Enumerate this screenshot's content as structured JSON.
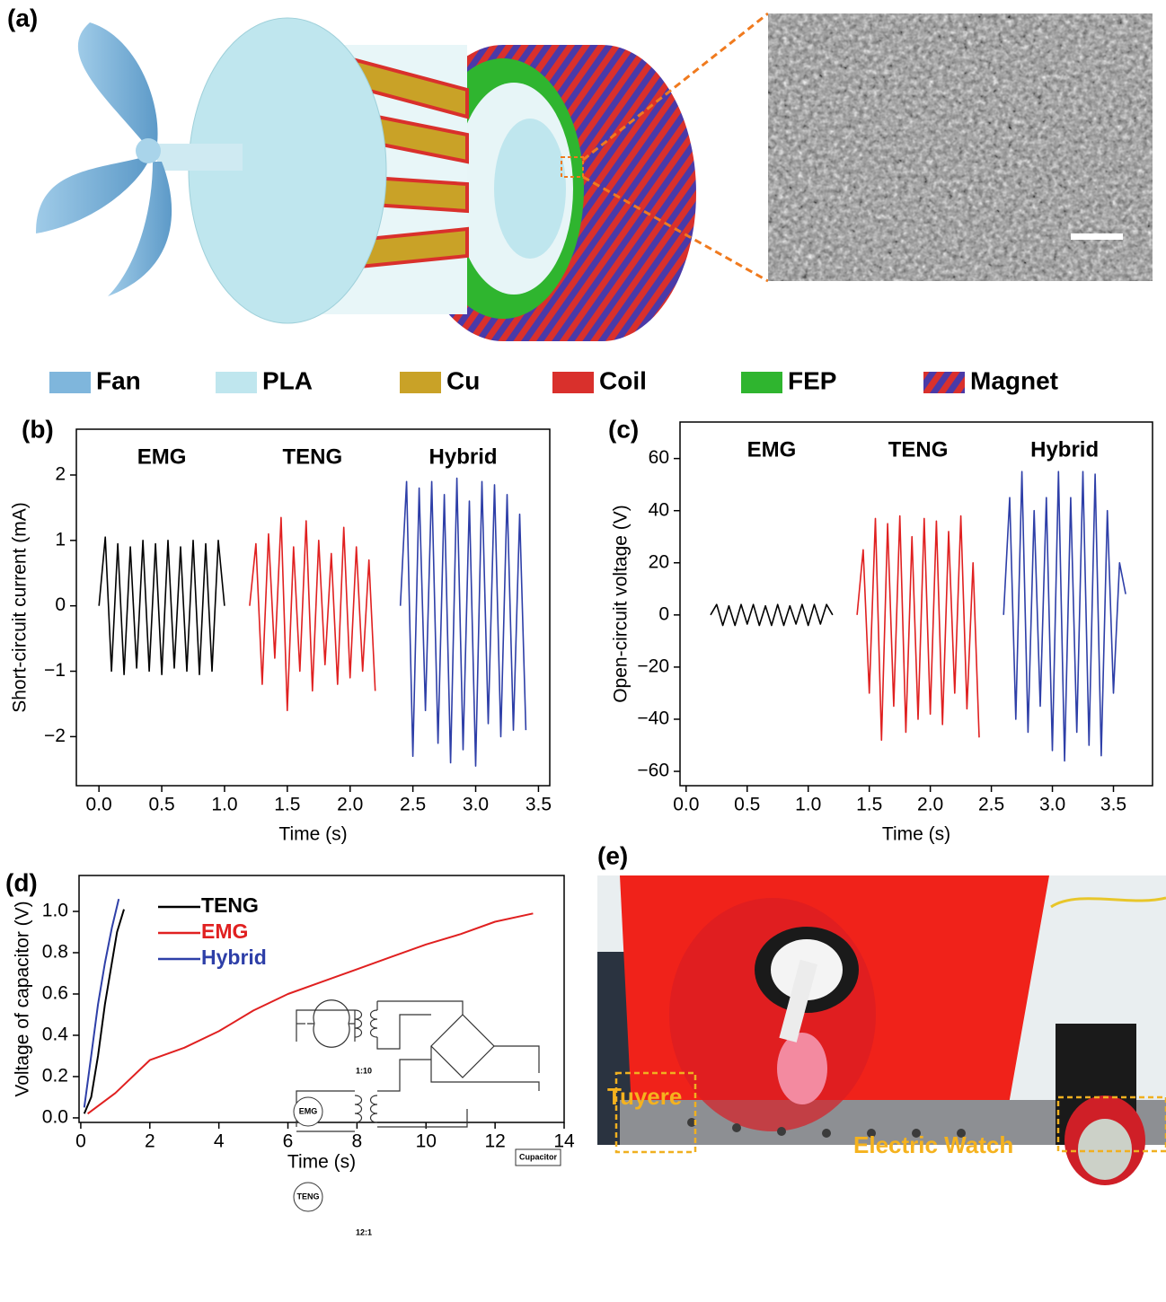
{
  "panel_labels": [
    "(a)",
    "(b)",
    "(c)",
    "(d)",
    "(e)"
  ],
  "legend_a": [
    {
      "name": "Fan",
      "color": "#7fb6dc"
    },
    {
      "name": "PLA",
      "color": "#bfe6ee"
    },
    {
      "name": "Cu",
      "color": "#c9a227"
    },
    {
      "name": "Coil",
      "color": "#d9302c"
    },
    {
      "name": "FEP",
      "color": "#2fb52f"
    },
    {
      "name": "Magnet",
      "color": "#4a3aa8"
    }
  ],
  "photo_labels": [
    "Tuyere",
    "Electric Watch"
  ],
  "chart_data": [
    {
      "type": "line",
      "xlabel": "Time (s)",
      "ylabel": "Short-circuit current (mA)",
      "xlim": [
        -0.18,
        3.59
      ],
      "ylim": [
        -2.75,
        2.7
      ],
      "xticks": [
        {
          "value": 0,
          "label": "0.0"
        },
        0.5,
        {
          "value": 1,
          "label": "1.0"
        },
        1.5,
        {
          "value": 2,
          "label": "2.0"
        },
        2.5,
        {
          "value": 3,
          "label": "3.0"
        },
        3.5
      ],
      "yticks": [
        {
          "value": -2,
          "label": "−2"
        },
        {
          "value": -1,
          "label": "−1"
        },
        0,
        1,
        2
      ],
      "series_labels": "above",
      "series": [
        {
          "name": "EMG",
          "color": "#000000",
          "x": [
            0,
            0.05,
            0.1,
            0.15,
            0.2,
            0.25,
            0.3,
            0.35,
            0.4,
            0.45,
            0.5,
            0.55,
            0.6,
            0.65,
            0.7,
            0.75,
            0.8,
            0.85,
            0.9,
            0.95,
            1.0
          ],
          "values": [
            0,
            1.05,
            -1.0,
            0.95,
            -1.05,
            0.9,
            -0.95,
            1.0,
            -1.0,
            0.95,
            -1.05,
            1.0,
            -0.95,
            0.9,
            -1.0,
            1.0,
            -1.05,
            0.95,
            -1.0,
            1.0,
            0
          ]
        },
        {
          "name": "TENG",
          "color": "#e02020",
          "x": [
            1.2,
            1.25,
            1.3,
            1.35,
            1.4,
            1.45,
            1.5,
            1.55,
            1.6,
            1.65,
            1.7,
            1.75,
            1.8,
            1.85,
            1.9,
            1.95,
            2.0,
            2.05,
            2.1,
            2.15,
            2.2
          ],
          "values": [
            0,
            0.95,
            -1.2,
            1.1,
            -0.8,
            1.35,
            -1.6,
            0.9,
            -1.0,
            1.3,
            -1.3,
            1.0,
            -0.9,
            0.8,
            -1.2,
            1.2,
            -1.1,
            0.9,
            -1.0,
            0.7,
            -1.3
          ]
        },
        {
          "name": "Hybrid",
          "color": "#2e3fa8",
          "x": [
            2.4,
            2.45,
            2.5,
            2.55,
            2.6,
            2.65,
            2.7,
            2.75,
            2.8,
            2.85,
            2.9,
            2.95,
            3.0,
            3.05,
            3.1,
            3.15,
            3.2,
            3.25,
            3.3,
            3.35,
            3.4
          ],
          "values": [
            0,
            1.9,
            -2.3,
            1.8,
            -1.6,
            1.9,
            -2.1,
            1.7,
            -2.4,
            1.95,
            -2.2,
            1.6,
            -2.45,
            1.9,
            -1.8,
            1.85,
            -2.0,
            1.7,
            -1.9,
            1.4,
            -1.9
          ]
        }
      ]
    },
    {
      "type": "line",
      "xlabel": "Time (s)",
      "ylabel": "Open-circuit voltage (V)",
      "xlim": [
        -0.05,
        3.82
      ],
      "ylim": [
        -65.5,
        74
      ],
      "xticks": [
        {
          "value": 0,
          "label": "0.0"
        },
        0.5,
        {
          "value": 1,
          "label": "1.0"
        },
        1.5,
        {
          "value": 2,
          "label": "2.0"
        },
        2.5,
        {
          "value": 3,
          "label": "3.0"
        },
        3.5
      ],
      "yticks": [
        {
          "value": -60,
          "label": "−60"
        },
        {
          "value": -40,
          "label": "−40"
        },
        {
          "value": -20,
          "label": "−20"
        },
        0,
        20,
        40,
        60
      ],
      "series_labels": "above",
      "series": [
        {
          "name": "EMG",
          "color": "#000000",
          "x": [
            0.2,
            0.25,
            0.3,
            0.35,
            0.4,
            0.45,
            0.5,
            0.55,
            0.6,
            0.65,
            0.7,
            0.75,
            0.8,
            0.85,
            0.9,
            0.95,
            1.0,
            1.05,
            1.1,
            1.15,
            1.2
          ],
          "values": [
            0,
            4,
            -4,
            3.5,
            -4,
            4,
            -3.5,
            4,
            -4,
            3.5,
            -4,
            4,
            -4,
            3.5,
            -3.5,
            4,
            -4,
            4,
            -3.5,
            4,
            0
          ]
        },
        {
          "name": "TENG",
          "color": "#e02020",
          "x": [
            1.4,
            1.45,
            1.5,
            1.55,
            1.6,
            1.65,
            1.7,
            1.75,
            1.8,
            1.85,
            1.9,
            1.95,
            2.0,
            2.05,
            2.1,
            2.15,
            2.2,
            2.25,
            2.3,
            2.35,
            2.4
          ],
          "values": [
            0,
            25,
            -30,
            37,
            -48,
            35,
            -35,
            38,
            -45,
            30,
            -40,
            37,
            -38,
            36,
            -42,
            32,
            -30,
            38,
            -36,
            20,
            -47
          ]
        },
        {
          "name": "Hybrid",
          "color": "#2e3fa8",
          "x": [
            2.6,
            2.65,
            2.7,
            2.75,
            2.8,
            2.85,
            2.9,
            2.95,
            3.0,
            3.05,
            3.1,
            3.15,
            3.2,
            3.25,
            3.3,
            3.35,
            3.4,
            3.45,
            3.5,
            3.55,
            3.6
          ],
          "values": [
            0,
            45,
            -40,
            55,
            -45,
            40,
            -35,
            45,
            -52,
            55,
            -56,
            45,
            -45,
            55,
            -50,
            54,
            -54,
            40,
            -30,
            20,
            8
          ]
        }
      ]
    },
    {
      "type": "line",
      "xlabel": "Time (s)",
      "ylabel": "Voltage of capacitor (V)",
      "xlim": [
        -0.05,
        14
      ],
      "ylim": [
        -0.022,
        1.174
      ],
      "xticks": [
        0,
        2,
        4,
        6,
        8,
        10,
        12,
        14
      ],
      "yticks": [
        {
          "value": 0,
          "label": "0.0"
        },
        0.2,
        0.4,
        0.6,
        0.8,
        {
          "value": 1,
          "label": "1.0"
        }
      ],
      "legend": "upper left",
      "series": [
        {
          "name": "TENG",
          "color": "#000000",
          "x": [
            0.1,
            0.3,
            0.5,
            0.7,
            0.9,
            1.05,
            1.25
          ],
          "values": [
            0.02,
            0.1,
            0.3,
            0.55,
            0.75,
            0.9,
            1.01
          ]
        },
        {
          "name": "EMG",
          "color": "#e02020",
          "x": [
            0.2,
            1,
            2,
            3,
            4,
            5,
            6,
            7,
            8,
            9,
            10,
            11,
            12,
            13.1
          ],
          "values": [
            0.02,
            0.12,
            0.28,
            0.34,
            0.42,
            0.52,
            0.6,
            0.66,
            0.72,
            0.78,
            0.84,
            0.89,
            0.95,
            0.99
          ]
        },
        {
          "name": "Hybrid",
          "color": "#2e3fa8",
          "x": [
            0.1,
            0.3,
            0.5,
            0.7,
            0.9,
            1.1
          ],
          "values": [
            0.05,
            0.3,
            0.55,
            0.75,
            0.92,
            1.06
          ]
        }
      ],
      "inset_labels": [
        "1:10",
        "EMG",
        "TENG",
        "12:1",
        "Cupacitor"
      ]
    }
  ]
}
